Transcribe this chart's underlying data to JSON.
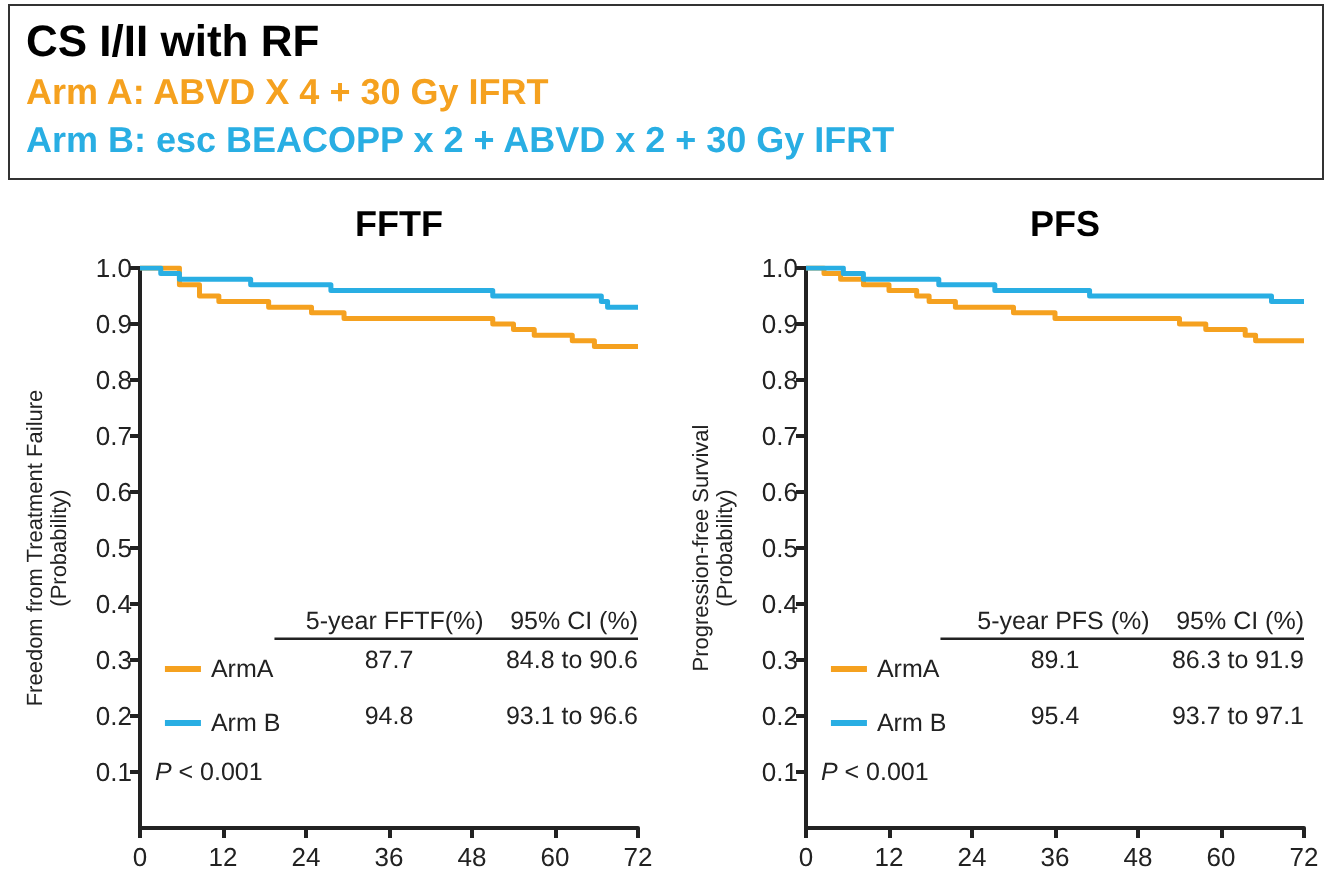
{
  "chart_data": [
    {
      "type": "other",
      "title": "CS I/II with RF",
      "annotations": [
        "Arm A: ABVD X 4 + 30 Gy IFRT",
        "Arm B: esc BEACOPP x 2 + ABVD x 2 + 30 Gy IFRT"
      ]
    },
    {
      "type": "step",
      "title": "FFTF",
      "ylabel": "Freedom from Treatment Failure\n(Probability)",
      "xlim": [
        0,
        72
      ],
      "xticks": [
        0,
        12,
        24,
        36,
        48,
        60,
        72
      ],
      "ylim": [
        0,
        1
      ],
      "yticks": [
        0.1,
        0.2,
        0.3,
        0.4,
        0.5,
        0.6,
        0.7,
        0.8,
        0.9,
        {
          "value": 1,
          "label": "1.0"
        }
      ],
      "grid": false,
      "legend": "bottom left",
      "marker": "none",
      "series": [
        {
          "name": "ArmA",
          "color": "#f5a11f",
          "x": [
            0,
            5.7,
            8.6,
            11.4,
            18.6,
            24.8,
            29.5,
            51,
            54,
            57,
            62.5,
            65.7,
            72
          ],
          "values": [
            1.0,
            0.97,
            0.95,
            0.94,
            0.93,
            0.92,
            0.91,
            0.9,
            0.89,
            0.88,
            0.87,
            0.86,
            0.86
          ]
        },
        {
          "name": "Arm B",
          "color": "#29aee3",
          "x": [
            0,
            3,
            5.7,
            16,
            27.6,
            51,
            66.7,
            67.6,
            72
          ],
          "values": [
            1.0,
            0.99,
            0.98,
            0.97,
            0.96,
            0.95,
            0.94,
            0.93,
            0.93
          ]
        }
      ],
      "annotations": [
        "5-year FFTF(%)",
        "95% CI (%)",
        "87.7",
        "84.8 to 90.6",
        "94.8",
        "93.1 to 96.6",
        "P < 0.001"
      ]
    },
    {
      "type": "step",
      "title": "PFS",
      "ylabel": "Progression-free Survival\n(Probability)",
      "xlim": [
        0,
        72
      ],
      "xticks": [
        0,
        12,
        24,
        36,
        48,
        60,
        72
      ],
      "ylim": [
        0,
        1
      ],
      "yticks": [
        0.1,
        0.2,
        0.3,
        0.4,
        0.5,
        0.6,
        0.7,
        0.8,
        0.9,
        {
          "value": 1,
          "label": "1.0"
        }
      ],
      "grid": false,
      "legend": "bottom left",
      "marker": "none",
      "series": [
        {
          "name": "ArmA",
          "color": "#f5a11f",
          "x": [
            0,
            2.6,
            5,
            8.3,
            12,
            16,
            17.8,
            21.6,
            30,
            36,
            54,
            57.8,
            63.5,
            65,
            72
          ],
          "values": [
            1.0,
            0.99,
            0.98,
            0.97,
            0.96,
            0.95,
            0.94,
            0.93,
            0.92,
            0.91,
            0.9,
            0.89,
            0.88,
            0.87,
            0.87
          ]
        },
        {
          "name": "Arm B",
          "color": "#29aee3",
          "x": [
            0,
            5.4,
            8.3,
            19.2,
            27.3,
            41,
            67.3,
            72
          ],
          "values": [
            1.0,
            0.99,
            0.98,
            0.97,
            0.96,
            0.95,
            0.94,
            0.94
          ]
        }
      ],
      "annotations": [
        "5-year PFS (%)",
        "95% CI (%)",
        "89.1",
        "86.3 to 91.9",
        "95.4",
        "93.7 to 97.1",
        "P < 0.001"
      ]
    }
  ]
}
